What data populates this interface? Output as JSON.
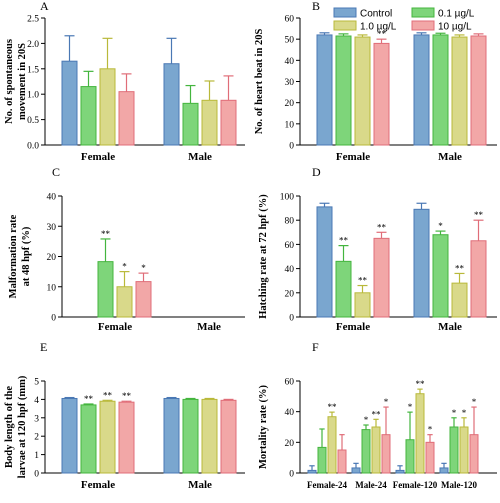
{
  "colors": {
    "Control": "#7aa6cf",
    "0.1 µg/L": "#7ed57a",
    "1.0 µg/L": "#d9d98a",
    "10 µg/L": "#f2a7a7"
  },
  "strokes": {
    "Control": "#4a78b4",
    "0.1 µg/L": "#44b53e",
    "1.0 µg/L": "#b9b93a",
    "10 µg/L": "#e06d78"
  },
  "legend": [
    "Control",
    "0.1 µg/L",
    "1.0 µg/L",
    "10 µg/L"
  ],
  "chart_data": [
    {
      "panel": "A",
      "type": "bar",
      "categories": [
        "Female",
        "Male"
      ],
      "ylabel": "No. of spontaneous movement in 20S",
      "ylim": [
        0,
        2.5
      ],
      "yticks": [
        "0.0",
        "0.5",
        "1.0",
        "1.5",
        "2.0",
        "2.5"
      ],
      "series": [
        {
          "name": "Control",
          "values": [
            1.65,
            1.6
          ],
          "errors": [
            0.5,
            0.5
          ],
          "stars": [
            "",
            ""
          ]
        },
        {
          "name": "0.1 µg/L",
          "values": [
            1.15,
            0.82
          ],
          "errors": [
            0.3,
            0.35
          ],
          "stars": [
            "",
            ""
          ]
        },
        {
          "name": "1.0 µg/L",
          "values": [
            1.5,
            0.88
          ],
          "errors": [
            0.6,
            0.38
          ],
          "stars": [
            "",
            ""
          ]
        },
        {
          "name": "10 µg/L",
          "values": [
            1.05,
            0.88
          ],
          "errors": [
            0.35,
            0.48
          ],
          "stars": [
            "",
            ""
          ]
        }
      ]
    },
    {
      "panel": "B",
      "type": "bar",
      "categories": [
        "Female",
        "Male"
      ],
      "ylabel": "No. of heart beat in 20S",
      "ylim": [
        0,
        60
      ],
      "yticks": [
        "0",
        "10",
        "20",
        "30",
        "40",
        "50",
        "60"
      ],
      "series": [
        {
          "name": "Control",
          "values": [
            52,
            52
          ],
          "errors": [
            1,
            1
          ],
          "stars": [
            "",
            ""
          ]
        },
        {
          "name": "0.1 µg/L",
          "values": [
            51.5,
            52
          ],
          "errors": [
            1,
            0.8
          ],
          "stars": [
            "",
            ""
          ]
        },
        {
          "name": "1.0 µg/L",
          "values": [
            51,
            51
          ],
          "errors": [
            1,
            1
          ],
          "stars": [
            "",
            ""
          ]
        },
        {
          "name": "10 µg/L",
          "values": [
            48,
            51.5
          ],
          "errors": [
            2,
            1
          ],
          "stars": [
            "**",
            ""
          ]
        }
      ]
    },
    {
      "panel": "C",
      "type": "bar",
      "categories": [
        "Female",
        "Male"
      ],
      "ylabel": "Malformation rate at 48 hpf (%)",
      "ylim": [
        0,
        40
      ],
      "yticks": [
        "0",
        "10",
        "20",
        "30",
        "40"
      ],
      "series": [
        {
          "name": "Control",
          "values": [
            0,
            0
          ],
          "errors": [
            0,
            0
          ],
          "stars": [
            "",
            ""
          ]
        },
        {
          "name": "0.1 µg/L",
          "values": [
            18.3,
            0
          ],
          "errors": [
            7.5,
            0
          ],
          "stars": [
            "**",
            ""
          ]
        },
        {
          "name": "1.0 µg/L",
          "values": [
            10,
            0
          ],
          "errors": [
            5,
            0
          ],
          "stars": [
            "*",
            ""
          ]
        },
        {
          "name": "10 µg/L",
          "values": [
            11.7,
            0
          ],
          "errors": [
            2.8,
            0
          ],
          "stars": [
            "*",
            ""
          ]
        }
      ]
    },
    {
      "panel": "D",
      "type": "bar",
      "categories": [
        "Female",
        "Male"
      ],
      "ylabel": "Hatching rate at 72 hpf (%)",
      "ylim": [
        0,
        100
      ],
      "yticks": [
        "0",
        "20",
        "40",
        "60",
        "80",
        "100"
      ],
      "series": [
        {
          "name": "Control",
          "values": [
            91,
            89
          ],
          "errors": [
            3,
            5
          ],
          "stars": [
            "",
            ""
          ]
        },
        {
          "name": "0.1 µg/L",
          "values": [
            46,
            68
          ],
          "errors": [
            13,
            3
          ],
          "stars": [
            "**",
            "*"
          ]
        },
        {
          "name": "1.0 µg/L",
          "values": [
            20,
            28
          ],
          "errors": [
            6,
            8
          ],
          "stars": [
            "**",
            "**"
          ]
        },
        {
          "name": "10 µg/L",
          "values": [
            65,
            63
          ],
          "errors": [
            5,
            17
          ],
          "stars": [
            "**",
            "**"
          ]
        }
      ]
    },
    {
      "panel": "E",
      "type": "bar",
      "categories": [
        "Female",
        "Male"
      ],
      "ylabel": "Body length of the larvae at 120 hpf (mm)",
      "ylim": [
        0,
        5
      ],
      "yticks": [
        "0",
        "1",
        "2",
        "3",
        "4",
        "5"
      ],
      "series": [
        {
          "name": "Control",
          "values": [
            4.05,
            4.05
          ],
          "errors": [
            0.05,
            0.05
          ],
          "stars": [
            "",
            ""
          ]
        },
        {
          "name": "0.1 µg/L",
          "values": [
            3.7,
            4.0
          ],
          "errors": [
            0.05,
            0.05
          ],
          "stars": [
            "**",
            ""
          ]
        },
        {
          "name": "1.0 µg/L",
          "values": [
            3.9,
            4.0
          ],
          "errors": [
            0.05,
            0.05
          ],
          "stars": [
            "**",
            ""
          ]
        },
        {
          "name": "10 µg/L",
          "values": [
            3.85,
            3.95
          ],
          "errors": [
            0.05,
            0.05
          ],
          "stars": [
            "**",
            ""
          ]
        }
      ]
    },
    {
      "panel": "F",
      "type": "bar",
      "categories": [
        "Female-24",
        "Male-24",
        "Female-120",
        "Male-120"
      ],
      "ylabel": "Mortality rate (%)",
      "ylim": [
        0,
        60
      ],
      "yticks": [
        "0",
        "20",
        "40",
        "60"
      ],
      "series": [
        {
          "name": "Control",
          "values": [
            1.7,
            3.3,
            1.7,
            3.3
          ],
          "errors": [
            3,
            3,
            3,
            3
          ],
          "stars": [
            "",
            "",
            "",
            ""
          ]
        },
        {
          "name": "0.1 µg/L",
          "values": [
            16.7,
            28.3,
            21.7,
            30
          ],
          "errors": [
            12,
            3,
            18,
            6
          ],
          "stars": [
            "",
            "*",
            "*",
            "*"
          ]
        },
        {
          "name": "1.0 µg/L",
          "values": [
            36.7,
            30,
            51.7,
            30
          ],
          "errors": [
            3,
            5,
            3,
            6
          ],
          "stars": [
            "**",
            "**",
            "**",
            "*"
          ]
        },
        {
          "name": "10 µg/L",
          "values": [
            15,
            25,
            20,
            25
          ],
          "errors": [
            10,
            18,
            5,
            18
          ],
          "stars": [
            "",
            "*",
            "*",
            "*"
          ]
        }
      ]
    }
  ]
}
